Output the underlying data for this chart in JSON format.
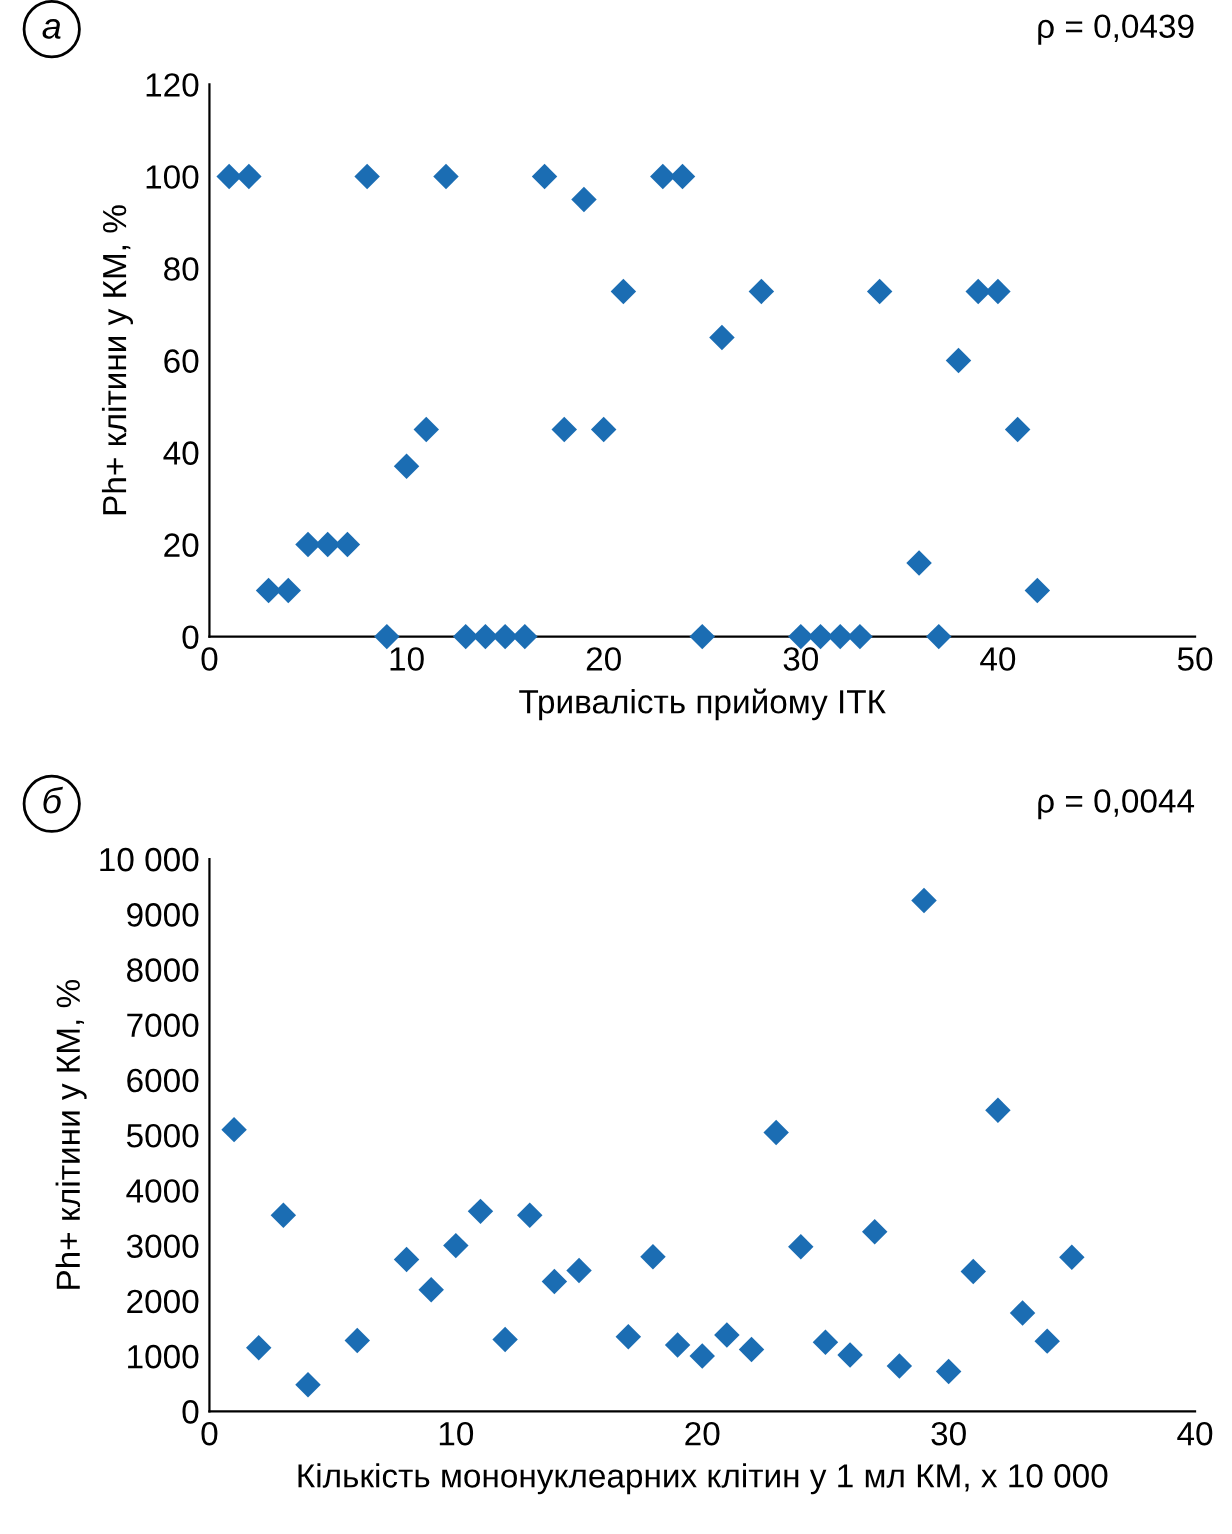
{
  "chart_data": [
    {
      "type": "scatter",
      "xlabel": "Тривалість прийому ІТК",
      "ylabel": "Ph+ клітини у КМ, %",
      "annotations": [
        "а",
        "ρ = 0,0439"
      ],
      "marker": "diamond",
      "grid": false,
      "legend": false,
      "xlim": [
        0,
        50
      ],
      "xticks": [
        0,
        10,
        20,
        30,
        40,
        50
      ],
      "ylim": [
        0,
        120
      ],
      "yticks": [
        0,
        20,
        40,
        60,
        80,
        100,
        120
      ],
      "series": [
        {
          "color": "#1b6db3",
          "x": [
            1,
            2,
            3,
            4,
            5,
            6,
            7,
            8,
            9,
            10,
            11,
            12,
            13,
            14,
            15,
            16,
            17,
            18,
            19,
            20,
            21,
            23,
            24,
            25,
            26,
            28,
            30,
            31,
            32,
            33,
            34,
            36,
            37,
            38,
            39,
            40,
            41,
            42
          ],
          "values": [
            100,
            100,
            10,
            10,
            20,
            20,
            20,
            100,
            0,
            37,
            45,
            100,
            0,
            0,
            0,
            0,
            100,
            45,
            95,
            45,
            75,
            100,
            100,
            0,
            65,
            75,
            0,
            0,
            0,
            0,
            75,
            16,
            0,
            60,
            75,
            75,
            45,
            10
          ]
        }
      ]
    },
    {
      "type": "scatter",
      "xlabel": "Кількість мононуклеарних клітин у 1 мл КМ, х 10 000",
      "ylabel": "Ph+ клітини у КМ, %",
      "annotations": [
        "б",
        "ρ = 0,0044"
      ],
      "marker": "diamond",
      "grid": false,
      "legend": false,
      "xlim": [
        0,
        40
      ],
      "xticks": [
        0,
        10,
        20,
        30,
        40
      ],
      "ylim": [
        0,
        10000
      ],
      "yticks": [
        0,
        1000,
        2000,
        3000,
        4000,
        5000,
        6000,
        7000,
        8000,
        9000,
        {
          "value": 10000,
          "label": "10 000"
        }
      ],
      "series": [
        {
          "color": "#1b6db3",
          "x": [
            1,
            2,
            3,
            4,
            6,
            8,
            9,
            10,
            11,
            12,
            13,
            14,
            15,
            17,
            18,
            19,
            20,
            21,
            22,
            23,
            24,
            25,
            26,
            27,
            28,
            29,
            30,
            31,
            32,
            33,
            34,
            35
          ],
          "values": [
            5100,
            1150,
            3550,
            480,
            1280,
            2750,
            2200,
            3000,
            3620,
            1300,
            3550,
            2350,
            2550,
            1350,
            2800,
            1200,
            1000,
            1380,
            1120,
            5050,
            2980,
            1250,
            1020,
            3250,
            820,
            9250,
            720,
            2530,
            5450,
            1780,
            1270,
            2790
          ]
        }
      ]
    }
  ]
}
